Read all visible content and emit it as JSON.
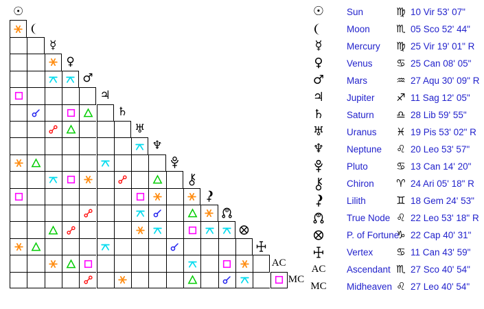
{
  "ui": {
    "background": "#ffffff",
    "grid_line_color": "#000000",
    "glyph_color": "#000000",
    "table_text_color": "#2222cc"
  },
  "aspect_colors": {
    "conjunction": "#2222ee",
    "sextile": "#ff8c10",
    "square": "#ff00ff",
    "trine": "#00cc00",
    "opposition": "#ff1111",
    "quincunx": "#00dbee"
  },
  "planets": [
    {
      "id": "sun",
      "glyph": "sun",
      "name": "Sun",
      "sign": "virgo",
      "position": "10 Vir 53' 07\""
    },
    {
      "id": "moon",
      "glyph": "moon",
      "name": "Moon",
      "sign": "scorpio",
      "position": "05 Sco 52' 44\""
    },
    {
      "id": "mercury",
      "glyph": "mercury",
      "name": "Mercury",
      "sign": "virgo",
      "position": "25 Vir 19' 01\" R"
    },
    {
      "id": "venus",
      "glyph": "venus",
      "name": "Venus",
      "sign": "cancer",
      "position": "25 Can 08' 05\""
    },
    {
      "id": "mars",
      "glyph": "mars",
      "name": "Mars",
      "sign": "aquarius",
      "position": "27 Aqu 30' 09\" R"
    },
    {
      "id": "jupiter",
      "glyph": "jupiter",
      "name": "Jupiter",
      "sign": "sagittarius",
      "position": "11 Sag 12' 05\""
    },
    {
      "id": "saturn",
      "glyph": "saturn",
      "name": "Saturn",
      "sign": "libra",
      "position": "28 Lib 59' 55\""
    },
    {
      "id": "uranus",
      "glyph": "uranus",
      "name": "Uranus",
      "sign": "pisces",
      "position": "19 Pis 53' 02\" R"
    },
    {
      "id": "neptune",
      "glyph": "neptune",
      "name": "Neptune",
      "sign": "leo",
      "position": "20 Leo 53' 57\""
    },
    {
      "id": "pluto",
      "glyph": "pluto",
      "name": "Pluto",
      "sign": "cancer",
      "position": "13 Can 14' 20\""
    },
    {
      "id": "chiron",
      "glyph": "chiron",
      "name": "Chiron",
      "sign": "aries",
      "position": "24 Ari 05' 18\" R"
    },
    {
      "id": "lilith",
      "glyph": "lilith",
      "name": "Lilith",
      "sign": "gemini",
      "position": "18 Gem 24' 53\""
    },
    {
      "id": "true-node",
      "glyph": "true-node",
      "name": "True Node",
      "sign": "leo",
      "position": "22 Leo 53' 18\" R"
    },
    {
      "id": "fortune",
      "glyph": "fortune",
      "name": "P. of Fortune",
      "sign": "capricorn",
      "position": "22 Cap 40' 31\""
    },
    {
      "id": "vertex",
      "glyph": "vertex",
      "name": "Vertex",
      "sign": "cancer",
      "position": "11 Can 43' 59\""
    },
    {
      "id": "ascendant",
      "glyph": "ascendant",
      "symbol_text": "AC",
      "name": "Ascendant",
      "sign": "scorpio",
      "position": "27 Sco 40' 54\""
    },
    {
      "id": "midheaven",
      "glyph": "midheaven",
      "symbol_text": "MC",
      "name": "Midheaven",
      "sign": "leo",
      "position": "27 Leo 40' 54\""
    }
  ],
  "grid": {
    "rows": [
      {
        "planet": "sun",
        "aspects": []
      },
      {
        "planet": "moon",
        "aspects": [
          "sextile"
        ]
      },
      {
        "planet": "mercury",
        "aspects": [
          null,
          null
        ]
      },
      {
        "planet": "venus",
        "aspects": [
          null,
          null,
          "sextile"
        ]
      },
      {
        "planet": "mars",
        "aspects": [
          null,
          null,
          "quincunx",
          "quincunx"
        ]
      },
      {
        "planet": "jupiter",
        "aspects": [
          "square",
          null,
          null,
          null,
          null
        ]
      },
      {
        "planet": "saturn",
        "aspects": [
          null,
          "conjunction",
          null,
          "square",
          "trine",
          null
        ]
      },
      {
        "planet": "uranus",
        "aspects": [
          null,
          null,
          "opposition",
          "trine",
          null,
          null,
          null
        ]
      },
      {
        "planet": "neptune",
        "aspects": [
          null,
          null,
          null,
          null,
          null,
          null,
          null,
          "quincunx"
        ]
      },
      {
        "planet": "pluto",
        "aspects": [
          "sextile",
          "trine",
          null,
          null,
          null,
          "quincunx",
          null,
          null,
          null
        ]
      },
      {
        "planet": "chiron",
        "aspects": [
          null,
          null,
          "quincunx",
          "square",
          "sextile",
          null,
          "opposition",
          null,
          "trine",
          null
        ]
      },
      {
        "planet": "lilith",
        "aspects": [
          "square",
          null,
          null,
          null,
          null,
          null,
          null,
          "square",
          "sextile",
          null,
          "sextile"
        ]
      },
      {
        "planet": "true-node",
        "aspects": [
          null,
          null,
          null,
          null,
          "opposition",
          null,
          null,
          "quincunx",
          "conjunction",
          null,
          "trine",
          "sextile"
        ]
      },
      {
        "planet": "fortune",
        "aspects": [
          null,
          null,
          "trine",
          "opposition",
          null,
          null,
          null,
          "sextile",
          "quincunx",
          null,
          "square",
          "quincunx",
          "quincunx"
        ]
      },
      {
        "planet": "vertex",
        "aspects": [
          "sextile",
          "trine",
          null,
          null,
          null,
          "quincunx",
          null,
          null,
          null,
          "conjunction",
          null,
          null,
          null,
          null
        ]
      },
      {
        "planet": "ascendant",
        "aspects": [
          null,
          null,
          "sextile",
          "trine",
          "square",
          null,
          null,
          null,
          null,
          null,
          "quincunx",
          null,
          "square",
          "sextile",
          null
        ]
      },
      {
        "planet": "midheaven",
        "aspects": [
          null,
          null,
          null,
          null,
          "opposition",
          null,
          "sextile",
          null,
          null,
          null,
          "trine",
          null,
          "conjunction",
          "quincunx",
          null,
          "square"
        ]
      }
    ]
  }
}
